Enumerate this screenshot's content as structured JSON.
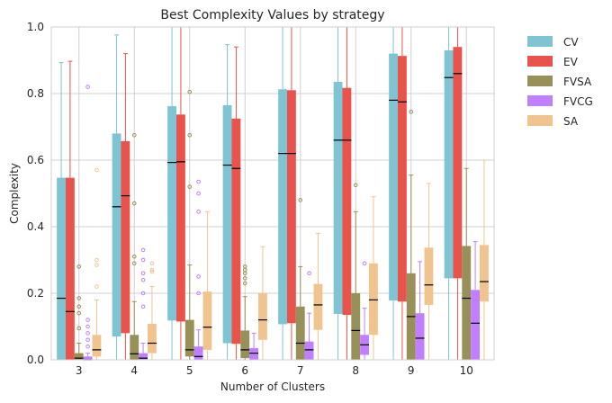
{
  "chart_data": {
    "type": "box",
    "title": "Best Complexity Values by strategy",
    "xlabel": "Number of Clusters",
    "ylabel": "Complexity",
    "ylim": [
      0,
      1
    ],
    "yticks": [
      "0.0",
      "0.2",
      "0.4",
      "0.6",
      "0.8",
      "1.0"
    ],
    "categories": [
      "3",
      "4",
      "5",
      "6",
      "7",
      "8",
      "9",
      "10"
    ],
    "grid": true,
    "legend_position": "outside-right",
    "series": [
      {
        "name": "CV",
        "color": "#7fc4d2",
        "boxes": [
          {
            "whislo": 0.0,
            "q1": 0.0,
            "med": 0.185,
            "q3": 0.547,
            "whishi": 0.893,
            "fliers": []
          },
          {
            "whislo": 0.0,
            "q1": 0.07,
            "med": 0.46,
            "q3": 0.68,
            "whishi": 0.976,
            "fliers": []
          },
          {
            "whislo": 0.0,
            "q1": 0.118,
            "med": 0.593,
            "q3": 0.762,
            "whishi": 1.0,
            "fliers": []
          },
          {
            "whislo": 0.0,
            "q1": 0.05,
            "med": 0.585,
            "q3": 0.765,
            "whishi": 0.947,
            "fliers": []
          },
          {
            "whislo": 0.0,
            "q1": 0.107,
            "med": 0.62,
            "q3": 0.813,
            "whishi": 1.0,
            "fliers": []
          },
          {
            "whislo": 0.0,
            "q1": 0.138,
            "med": 0.66,
            "q3": 0.835,
            "whishi": 1.0,
            "fliers": []
          },
          {
            "whislo": 0.0,
            "q1": 0.178,
            "med": 0.78,
            "q3": 0.92,
            "whishi": 1.0,
            "fliers": []
          },
          {
            "whislo": 0.0,
            "q1": 0.245,
            "med": 0.848,
            "q3": 0.93,
            "whishi": 1.0,
            "fliers": []
          }
        ]
      },
      {
        "name": "EV",
        "color": "#e8534b",
        "boxes": [
          {
            "whislo": 0.0,
            "q1": 0.0,
            "med": 0.145,
            "q3": 0.547,
            "whishi": 0.897,
            "fliers": []
          },
          {
            "whislo": 0.0,
            "q1": 0.08,
            "med": 0.493,
            "q3": 0.657,
            "whishi": 0.92,
            "fliers": []
          },
          {
            "whislo": 0.0,
            "q1": 0.115,
            "med": 0.595,
            "q3": 0.737,
            "whishi": 1.0,
            "fliers": []
          },
          {
            "whislo": 0.0,
            "q1": 0.048,
            "med": 0.575,
            "q3": 0.725,
            "whishi": 0.94,
            "fliers": []
          },
          {
            "whislo": 0.0,
            "q1": 0.11,
            "med": 0.62,
            "q3": 0.81,
            "whishi": 1.0,
            "fliers": []
          },
          {
            "whislo": 0.0,
            "q1": 0.135,
            "med": 0.66,
            "q3": 0.817,
            "whishi": 1.0,
            "fliers": []
          },
          {
            "whislo": 0.0,
            "q1": 0.175,
            "med": 0.775,
            "q3": 0.913,
            "whishi": 1.0,
            "fliers": []
          },
          {
            "whislo": 0.0,
            "q1": 0.245,
            "med": 0.86,
            "q3": 0.94,
            "whishi": 1.0,
            "fliers": []
          }
        ]
      },
      {
        "name": "FVSA",
        "color": "#979059",
        "boxes": [
          {
            "whislo": 0.0,
            "q1": 0.0,
            "med": 0.005,
            "q3": 0.02,
            "whishi": 0.05,
            "fliers": [
              0.095,
              0.14,
              0.16,
              0.185,
              0.28
            ]
          },
          {
            "whislo": 0.0,
            "q1": 0.0,
            "med": 0.018,
            "q3": 0.075,
            "whishi": 0.175,
            "fliers": [
              0.29,
              0.31,
              0.47,
              0.675
            ]
          },
          {
            "whislo": 0.0,
            "q1": 0.01,
            "med": 0.03,
            "q3": 0.12,
            "whishi": 0.285,
            "fliers": [
              0.52,
              0.675,
              0.805
            ]
          },
          {
            "whislo": 0.0,
            "q1": 0.005,
            "med": 0.03,
            "q3": 0.088,
            "whishi": 0.19,
            "fliers": [
              0.23,
              0.245,
              0.26,
              0.27,
              0.28
            ]
          },
          {
            "whislo": 0.0,
            "q1": 0.0,
            "med": 0.05,
            "q3": 0.16,
            "whishi": 0.28,
            "fliers": [
              0.48
            ]
          },
          {
            "whislo": 0.0,
            "q1": 0.0,
            "med": 0.088,
            "q3": 0.2,
            "whishi": 0.445,
            "fliers": [
              0.525
            ]
          },
          {
            "whislo": 0.0,
            "q1": 0.0,
            "med": 0.13,
            "q3": 0.26,
            "whishi": 0.555,
            "fliers": [
              0.745
            ]
          },
          {
            "whislo": 0.0,
            "q1": 0.0,
            "med": 0.185,
            "q3": 0.342,
            "whishi": 0.575,
            "fliers": []
          }
        ]
      },
      {
        "name": "FVCG",
        "color": "#bf7fff",
        "boxes": [
          {
            "whislo": 0.0,
            "q1": 0.0,
            "med": 0.0,
            "q3": 0.01,
            "whishi": 0.02,
            "fliers": [
              0.04,
              0.06,
              0.08,
              0.1,
              0.12,
              0.82
            ]
          },
          {
            "whislo": 0.0,
            "q1": 0.0,
            "med": 0.005,
            "q3": 0.02,
            "whishi": 0.05,
            "fliers": [
              0.16,
              0.2,
              0.24,
              0.26,
              0.3,
              0.33
            ]
          },
          {
            "whislo": 0.0,
            "q1": 0.0,
            "med": 0.01,
            "q3": 0.04,
            "whishi": 0.09,
            "fliers": [
              0.2,
              0.25,
              0.445,
              0.5,
              0.535
            ]
          },
          {
            "whislo": 0.0,
            "q1": 0.0,
            "med": 0.02,
            "q3": 0.035,
            "whishi": 0.08,
            "fliers": []
          },
          {
            "whislo": 0.0,
            "q1": 0.0,
            "med": 0.03,
            "q3": 0.055,
            "whishi": 0.14,
            "fliers": [
              0.26
            ]
          },
          {
            "whislo": 0.0,
            "q1": 0.015,
            "med": 0.045,
            "q3": 0.075,
            "whishi": 0.155,
            "fliers": [
              0.29
            ]
          },
          {
            "whislo": 0.0,
            "q1": 0.0,
            "med": 0.065,
            "q3": 0.14,
            "whishi": 0.295,
            "fliers": []
          },
          {
            "whislo": 0.0,
            "q1": 0.0,
            "med": 0.11,
            "q3": 0.21,
            "whishi": 0.355,
            "fliers": []
          }
        ]
      },
      {
        "name": "SA",
        "color": "#f0c48f",
        "boxes": [
          {
            "whislo": 0.0,
            "q1": 0.01,
            "med": 0.03,
            "q3": 0.075,
            "whishi": 0.18,
            "fliers": [
              0.22,
              0.285,
              0.3,
              0.57
            ]
          },
          {
            "whislo": 0.0,
            "q1": 0.02,
            "med": 0.05,
            "q3": 0.108,
            "whishi": 0.22,
            "fliers": [
              0.265,
              0.27,
              0.29
            ]
          },
          {
            "whislo": 0.0,
            "q1": 0.03,
            "med": 0.098,
            "q3": 0.205,
            "whishi": 0.445,
            "fliers": []
          },
          {
            "whislo": 0.0,
            "q1": 0.06,
            "med": 0.12,
            "q3": 0.2,
            "whishi": 0.34,
            "fliers": []
          },
          {
            "whislo": 0.0,
            "q1": 0.09,
            "med": 0.165,
            "q3": 0.228,
            "whishi": 0.38,
            "fliers": []
          },
          {
            "whislo": 0.0,
            "q1": 0.075,
            "med": 0.18,
            "q3": 0.29,
            "whishi": 0.49,
            "fliers": []
          },
          {
            "whislo": 0.0,
            "q1": 0.165,
            "med": 0.225,
            "q3": 0.337,
            "whishi": 0.53,
            "fliers": []
          },
          {
            "whislo": 0.0,
            "q1": 0.175,
            "med": 0.235,
            "q3": 0.345,
            "whishi": 0.6,
            "fliers": []
          }
        ]
      }
    ]
  }
}
